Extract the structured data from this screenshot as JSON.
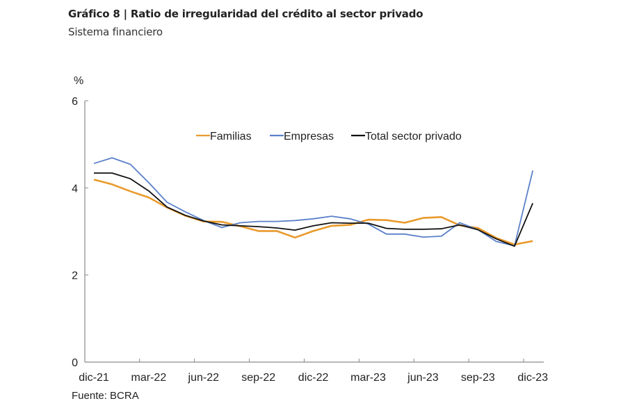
{
  "header": {
    "title": "Gráfico 8 | Ratio de irregularidad del crédito al sector privado",
    "subtitle": "Sistema financiero"
  },
  "footer": {
    "source": "Fuente: BCRA"
  },
  "chart_data": {
    "type": "line",
    "title": "Gráfico 8 | Ratio de irregularidad del crédito al sector privado",
    "subtitle": "Sistema financiero",
    "xlabel": "",
    "ylabel": "%",
    "ylim": [
      0,
      6
    ],
    "yticks": [
      0,
      2,
      4,
      6
    ],
    "grid": false,
    "legend_position": "top-center",
    "x": [
      "dic-21",
      "ene-22",
      "feb-22",
      "mar-22",
      "abr-22",
      "may-22",
      "jun-22",
      "jul-22",
      "ago-22",
      "sep-22",
      "oct-22",
      "nov-22",
      "dic-22",
      "ene-23",
      "feb-23",
      "mar-23",
      "abr-23",
      "may-23",
      "jun-23",
      "jul-23",
      "ago-23",
      "sep-23",
      "oct-23",
      "nov-23",
      "dic-23"
    ],
    "xtick_labels": [
      "dic-21",
      "mar-22",
      "jun-22",
      "sep-22",
      "dic-22",
      "mar-23",
      "jun-23",
      "sep-23",
      "dic-23"
    ],
    "series": [
      {
        "name": "Familias",
        "color": "#E99A2C",
        "values": [
          4.19,
          4.08,
          3.92,
          3.78,
          3.55,
          3.36,
          3.23,
          3.22,
          3.12,
          3.01,
          3.01,
          2.86,
          3.01,
          3.13,
          3.15,
          3.27,
          3.26,
          3.2,
          3.31,
          3.33,
          3.14,
          3.08,
          2.85,
          2.7,
          2.78
        ]
      },
      {
        "name": "Empresas",
        "color": "#5B80C8",
        "values": [
          4.56,
          4.69,
          4.54,
          4.12,
          3.67,
          3.45,
          3.25,
          3.09,
          3.2,
          3.23,
          3.23,
          3.25,
          3.29,
          3.35,
          3.29,
          3.17,
          2.94,
          2.94,
          2.87,
          2.89,
          3.2,
          3.04,
          2.77,
          2.67,
          4.4
        ]
      },
      {
        "name": "Total sector privado",
        "color": "#111111",
        "values": [
          4.34,
          4.34,
          4.21,
          3.93,
          3.56,
          3.37,
          3.24,
          3.15,
          3.13,
          3.11,
          3.08,
          3.03,
          3.13,
          3.2,
          3.19,
          3.19,
          3.07,
          3.05,
          3.05,
          3.06,
          3.15,
          3.04,
          2.83,
          2.66,
          3.65
        ]
      }
    ]
  }
}
